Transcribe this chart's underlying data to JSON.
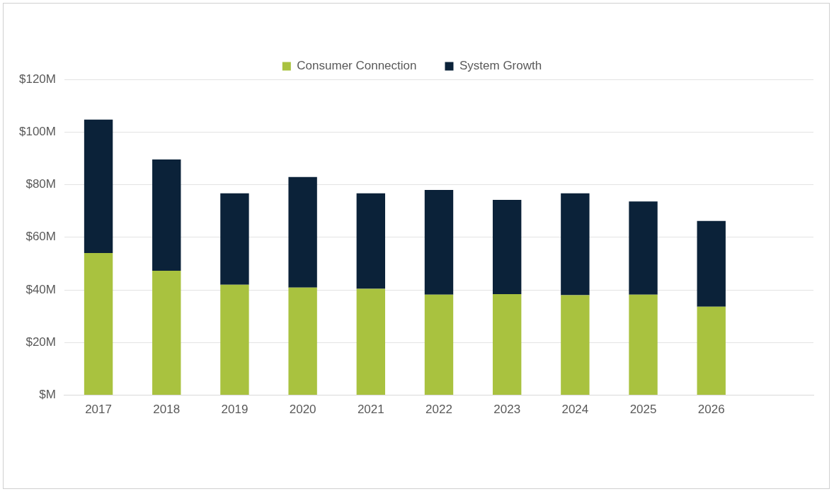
{
  "chart_data": {
    "type": "bar",
    "stacked": true,
    "categories": [
      "2017",
      "2018",
      "2019",
      "2020",
      "2021",
      "2022",
      "2023",
      "2024",
      "2025",
      "2026",
      null
    ],
    "series": [
      {
        "name": "Consumer Connection",
        "color": "#a9c23f",
        "values": [
          54.0,
          47.3,
          42.0,
          40.9,
          40.4,
          38.2,
          38.4,
          38.0,
          38.2,
          33.6,
          null
        ]
      },
      {
        "name": "System Growth",
        "color": "#0b2239",
        "values": [
          50.7,
          42.3,
          34.7,
          42.0,
          36.3,
          39.8,
          35.8,
          38.7,
          35.4,
          32.6,
          null
        ]
      }
    ],
    "ylim": [
      0,
      120
    ],
    "yticks": [
      {
        "value": 0,
        "label": "$M"
      },
      {
        "value": 20,
        "label": "$20M"
      },
      {
        "value": 40,
        "label": "$40M"
      },
      {
        "value": 60,
        "label": "$60M"
      },
      {
        "value": 80,
        "label": "$80M"
      },
      {
        "value": 100,
        "label": "$100M"
      },
      {
        "value": 120,
        "label": "$120M"
      }
    ],
    "grid": "y",
    "legend": "top"
  }
}
